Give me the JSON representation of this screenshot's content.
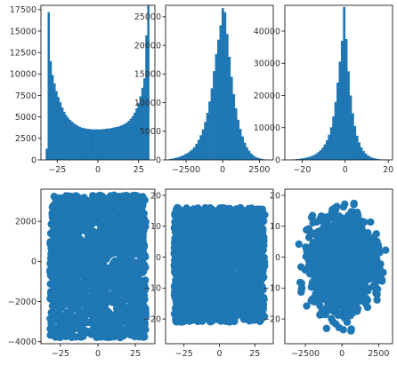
{
  "figure": {
    "background": "#ffffff",
    "mark_color": "#1f77b4"
  },
  "chart_data": [
    {
      "type": "bar",
      "subtype": "histogram",
      "categories": [
        -31.5,
        -30.3,
        -29.1,
        -27.9,
        -26.7,
        -25.5,
        -24.3,
        -23.1,
        -21.9,
        -20.7,
        -19.5,
        -18.3,
        -17.1,
        -15.9,
        -14.7,
        -13.5,
        -12.3,
        -11.1,
        -9.9,
        -8.7,
        -7.5,
        -6.3,
        -5.1,
        -3.9,
        -2.7,
        -1.5,
        -0.3,
        0.9,
        2.1,
        3.3,
        4.5,
        5.7,
        6.9,
        8.1,
        9.3,
        10.5,
        11.7,
        12.9,
        14.1,
        15.3,
        16.5,
        17.7,
        18.9,
        20.1,
        21.3,
        22.5,
        23.7,
        24.9,
        26.1,
        27.3,
        28.5,
        29.7,
        30.9
      ],
      "values": [
        1300,
        17200,
        11500,
        9900,
        8900,
        8000,
        7300,
        6700,
        6100,
        5600,
        5200,
        4900,
        4650,
        4450,
        4250,
        4100,
        3950,
        3850,
        3750,
        3700,
        3650,
        3600,
        3600,
        3550,
        3550,
        3550,
        3550,
        3550,
        3550,
        3600,
        3600,
        3650,
        3650,
        3700,
        3750,
        3800,
        3850,
        3900,
        4000,
        4100,
        4200,
        4350,
        4550,
        4800,
        5100,
        5500,
        6000,
        6600,
        7400,
        8400,
        9500,
        14500,
        25100
      ],
      "bin_width": 1.2,
      "xlim": [
        -35,
        35
      ],
      "ylim": [
        0,
        18000
      ],
      "xticks": [
        -25,
        0,
        25
      ],
      "yticks": [
        0,
        2500,
        5000,
        7500,
        10000,
        12500,
        15000,
        17500
      ],
      "title": "",
      "xlabel": "",
      "ylabel": ""
    },
    {
      "type": "bar",
      "subtype": "histogram",
      "categories": [
        -3600,
        -3450,
        -3300,
        -3150,
        -3000,
        -2850,
        -2700,
        -2550,
        -2400,
        -2250,
        -2100,
        -1950,
        -1800,
        -1650,
        -1500,
        -1350,
        -1200,
        -1050,
        -900,
        -750,
        -600,
        -450,
        -300,
        -150,
        0,
        150,
        300,
        450,
        600,
        750,
        900,
        1050,
        1200,
        1350,
        1500,
        1650,
        1800,
        1950,
        2100,
        2250,
        2400,
        2550,
        2700,
        2850,
        3000
      ],
      "values": [
        150,
        200,
        300,
        400,
        500,
        650,
        800,
        1000,
        1200,
        1500,
        1800,
        2200,
        2800,
        3500,
        4300,
        5300,
        6600,
        8200,
        10200,
        12500,
        15500,
        18500,
        21000,
        23500,
        26500,
        25800,
        22000,
        18000,
        14500,
        11500,
        9000,
        7000,
        5400,
        4100,
        3000,
        2200,
        1600,
        1100,
        750,
        500,
        350,
        250,
        150,
        100,
        50
      ],
      "bin_width": 150,
      "xlim": [
        -3900,
        3450
      ],
      "ylim": [
        0,
        27000
      ],
      "xticks": [
        -2500,
        0,
        2500
      ],
      "yticks": [
        0,
        5000,
        10000,
        15000,
        20000,
        25000
      ],
      "title": "",
      "xlabel": "",
      "ylabel": ""
    },
    {
      "type": "bar",
      "subtype": "histogram",
      "categories": [
        -24.5,
        -23.5,
        -22.5,
        -21.5,
        -20.5,
        -19.5,
        -18.5,
        -17.5,
        -16.5,
        -15.5,
        -14.5,
        -13.5,
        -12.5,
        -11.5,
        -10.5,
        -9.5,
        -8.5,
        -7.5,
        -6.5,
        -5.5,
        -4.5,
        -3.5,
        -2.5,
        -1.5,
        -0.5,
        0.5,
        1.5,
        2.5,
        3.5,
        4.5,
        5.5,
        6.5,
        7.5,
        8.5,
        9.5,
        10.5,
        11.5,
        12.5,
        13.5,
        14.5,
        15.5,
        16.5,
        17.5,
        18.5,
        19.5
      ],
      "values": [
        100,
        150,
        250,
        300,
        400,
        500,
        650,
        800,
        1000,
        1200,
        1500,
        1900,
        2400,
        3000,
        3800,
        4800,
        6100,
        7800,
        10100,
        13500,
        18000,
        24000,
        30500,
        37000,
        47500,
        37500,
        27500,
        20000,
        14500,
        10500,
        7500,
        5400,
        3900,
        2800,
        2000,
        1400,
        1000,
        700,
        500,
        350,
        250,
        170,
        120,
        80,
        50
      ],
      "bin_width": 1,
      "xlim": [
        -28,
        22
      ],
      "ylim": [
        0,
        48000
      ],
      "xticks": [
        -20,
        0,
        20
      ],
      "yticks": [
        0,
        10000,
        20000,
        30000,
        40000
      ],
      "title": "",
      "xlabel": "",
      "ylabel": ""
    },
    {
      "type": "scatter",
      "description_x": "uniform-ish within [-32, 32]",
      "xlim": [
        -38,
        38
      ],
      "ylim": [
        -4100,
        3600
      ],
      "xticks": [
        -25,
        0,
        25
      ],
      "yticks": [
        -4000,
        -2000,
        0,
        2000
      ],
      "bounds": {
        "xmin": -32,
        "xmax": 32,
        "ymin": -3800,
        "ymax": 3300
      },
      "title": "",
      "xlabel": "",
      "ylabel": ""
    },
    {
      "type": "scatter",
      "xlim": [
        -38,
        38
      ],
      "ylim": [
        -28,
        22
      ],
      "xticks": [
        -25,
        0,
        25
      ],
      "yticks": [
        -20,
        -10,
        0,
        10,
        20
      ],
      "bounds": {
        "xmin": -32,
        "xmax": 32,
        "ymin": -21,
        "ymax": 16
      },
      "title": "",
      "xlabel": "",
      "ylabel": ""
    },
    {
      "type": "scatter",
      "xlim": [
        -3900,
        3450
      ],
      "ylim": [
        -28,
        22
      ],
      "xticks": [
        -2500,
        0,
        2500
      ],
      "yticks": [
        -20,
        -10,
        0,
        10,
        20
      ],
      "bounds": {
        "xmin": -3600,
        "xmax": 3200,
        "ymin": -27,
        "ymax": 20
      },
      "title": "",
      "xlabel": "",
      "ylabel": ""
    }
  ]
}
